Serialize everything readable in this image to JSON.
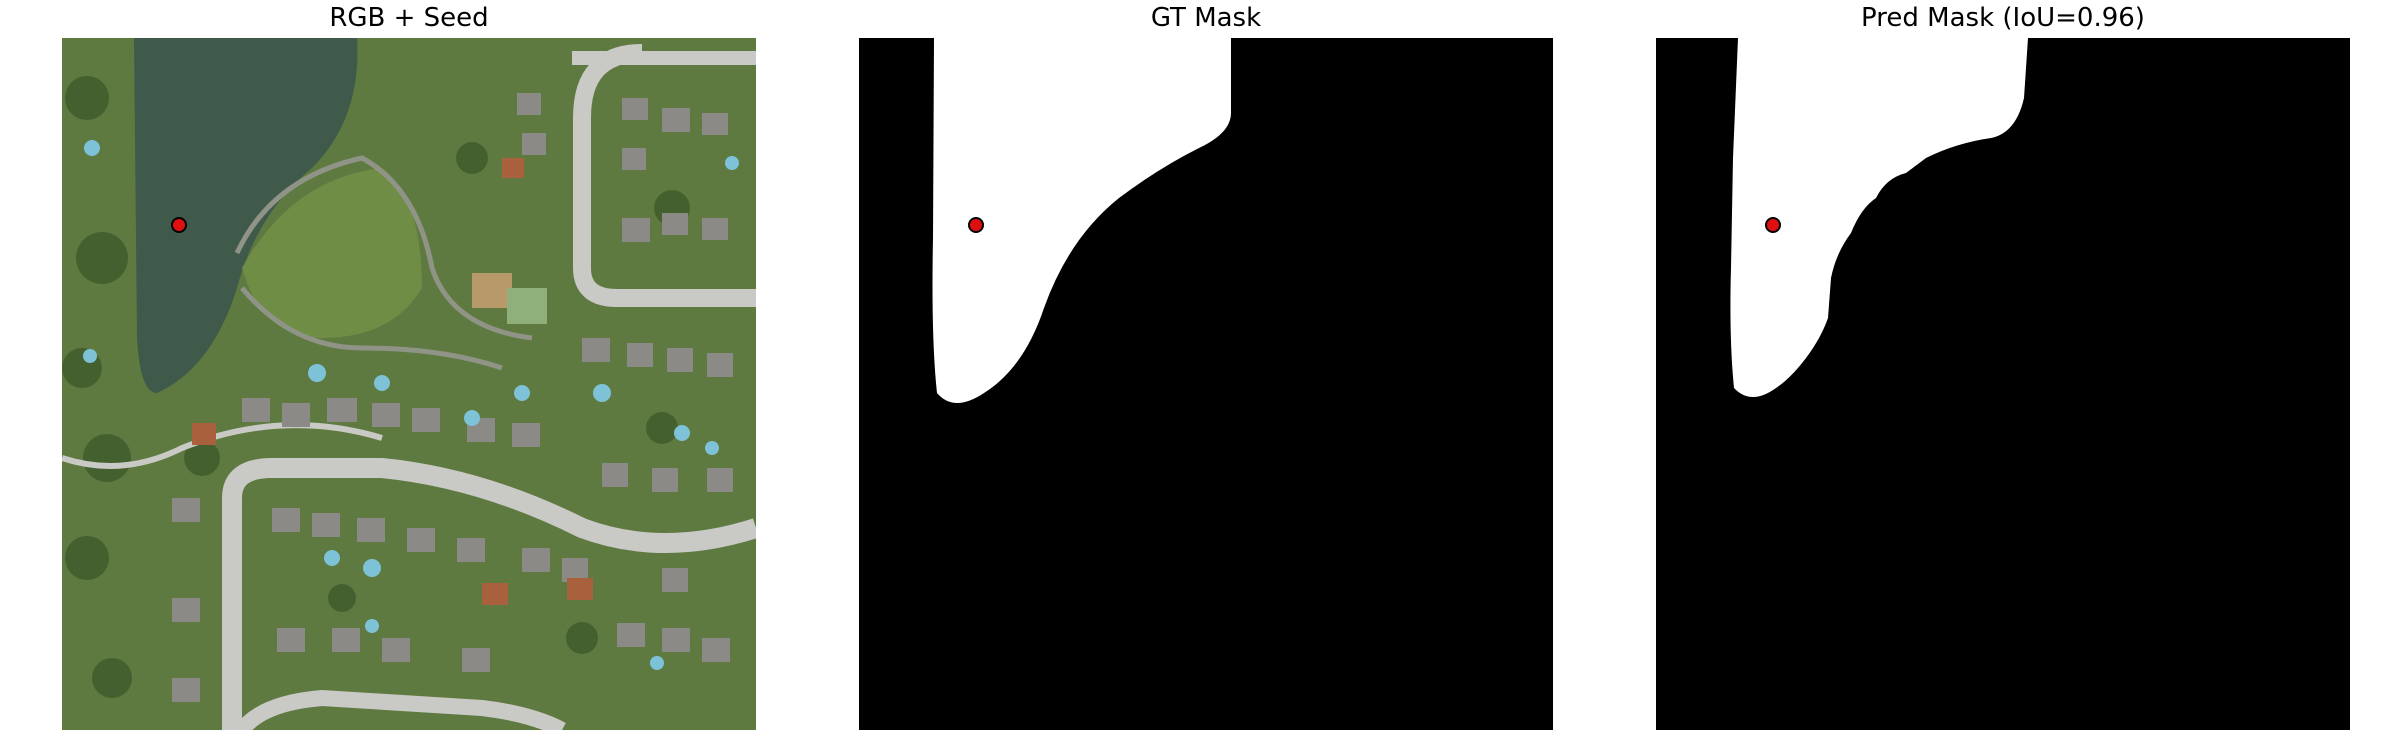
{
  "figure": {
    "panels": [
      {
        "title": "RGB + Seed",
        "image_type": "aerial-photo"
      },
      {
        "title": "GT Mask",
        "image_type": "binary-mask"
      },
      {
        "title": "Pred Mask (IoU=0.96)",
        "image_type": "binary-mask"
      }
    ],
    "seed_point_color": "#e01010",
    "mask_fg_color": "#ffffff",
    "mask_bg_color": "#000000",
    "iou": 0.96
  }
}
